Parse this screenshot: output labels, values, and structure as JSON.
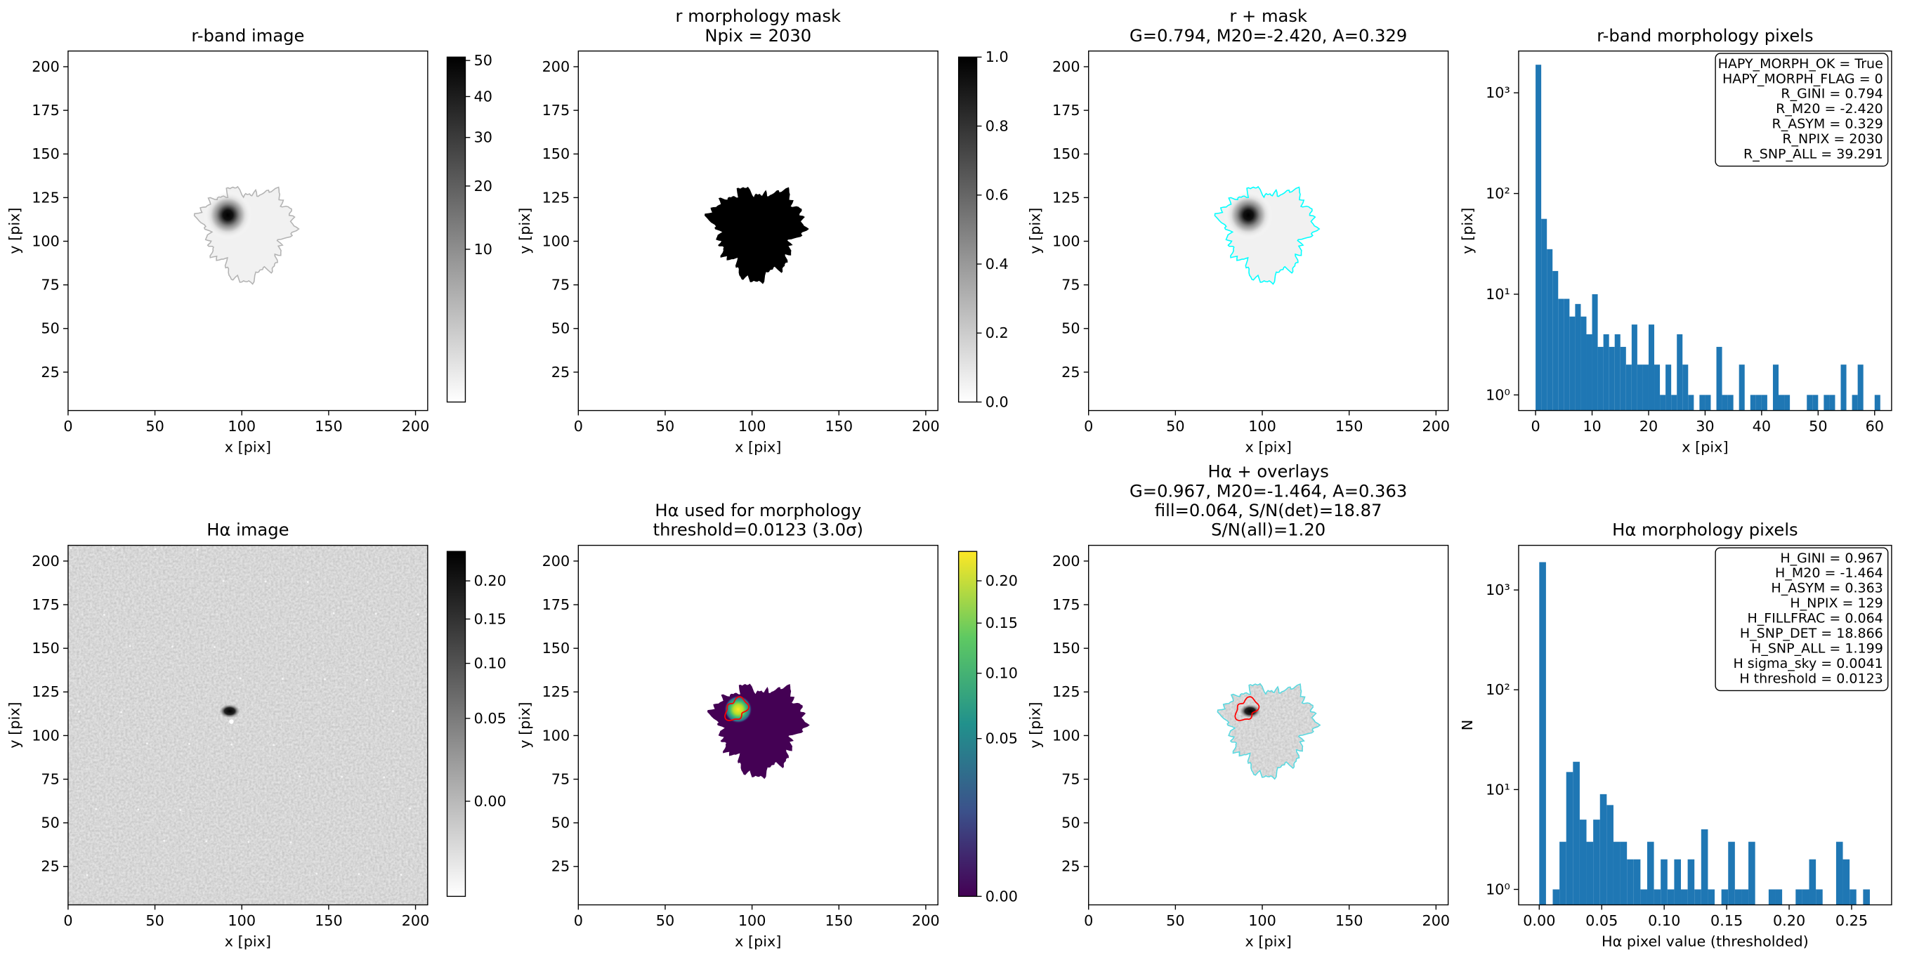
{
  "chart_data": [
    {
      "type": "image",
      "title": [
        "r-band image"
      ],
      "xlabel": "x [pix]",
      "ylabel": "y [pix]",
      "xlim": [
        0,
        207
      ],
      "ylim": [
        3,
        209
      ],
      "xticks": [
        0,
        50,
        100,
        150,
        200
      ],
      "yticks": [
        25,
        50,
        75,
        100,
        125,
        150,
        175,
        200
      ],
      "contour_color": "#b3b3b3",
      "colorbar": {
        "cmap": "gray_r",
        "stretch": "sqrt",
        "clim": [
          0,
          51
        ],
        "ticks": [
          10,
          20,
          30,
          40,
          50
        ]
      }
    },
    {
      "type": "image",
      "title": [
        "r morphology mask",
        "Npix = 2030"
      ],
      "xlabel": "x [pix]",
      "ylabel": "y [pix]",
      "xlim": [
        0,
        207
      ],
      "ylim": [
        3,
        209
      ],
      "xticks": [
        0,
        50,
        100,
        150,
        200
      ],
      "yticks": [
        25,
        50,
        75,
        100,
        125,
        150,
        175,
        200
      ],
      "colorbar": {
        "cmap": "gray_r",
        "stretch": "linear",
        "clim": [
          0,
          1
        ],
        "ticks": [
          {
            "value": 0,
            "label": "0.0"
          },
          0.2,
          0.4,
          0.6,
          0.8,
          {
            "value": 1,
            "label": "1.0"
          }
        ]
      }
    },
    {
      "type": "image",
      "title": [
        "r + mask",
        "G=0.794, M20=-2.420, A=0.329"
      ],
      "xlabel": "x [pix]",
      "ylabel": "y [pix]",
      "xlim": [
        0,
        207
      ],
      "ylim": [
        3,
        209
      ],
      "xticks": [
        0,
        50,
        100,
        150,
        200
      ],
      "yticks": [
        25,
        50,
        75,
        100,
        125,
        150,
        175,
        200
      ],
      "contour_color": "#00ffff"
    },
    {
      "type": "histogram",
      "title": [
        "r-band morphology pixels"
      ],
      "xlabel": "x [pix]",
      "ylabel": "y [pix]",
      "color": "#1f77b4",
      "log_y": true,
      "xlim": [
        -3,
        63
      ],
      "ylim": [
        0.7,
        2600
      ],
      "xticks": [
        0,
        10,
        20,
        30,
        40,
        50,
        60
      ],
      "yticks": [
        {
          "value": 1,
          "label": "10⁰"
        },
        {
          "value": 10,
          "label": "10¹"
        },
        {
          "value": 100,
          "label": "10²"
        },
        {
          "value": 1000,
          "label": "10³"
        }
      ],
      "bins": [
        0,
        1,
        2,
        3,
        4,
        5,
        6,
        7,
        8,
        9,
        10,
        11,
        12,
        13,
        14,
        15,
        16,
        17,
        18,
        19,
        20,
        21,
        22,
        23,
        24,
        25,
        26,
        27,
        28,
        29,
        30,
        31,
        32,
        33,
        34,
        35,
        36,
        37,
        38,
        39,
        40,
        41,
        42,
        43,
        44,
        45,
        46,
        47,
        48,
        49,
        50,
        51,
        52,
        53,
        54,
        55,
        56,
        57,
        58,
        59,
        60,
        61
      ],
      "values": [
        1900,
        56,
        28,
        17,
        9,
        9,
        6,
        8,
        6,
        4,
        10,
        3,
        4,
        3,
        4,
        3,
        2,
        5,
        2,
        2,
        5,
        2,
        1,
        2,
        1,
        4,
        2,
        1,
        0,
        1,
        1,
        0,
        3,
        1,
        1,
        0,
        2,
        0,
        1,
        1,
        1,
        0,
        2,
        1,
        1,
        0,
        0,
        0,
        1,
        1,
        0,
        1,
        1,
        0,
        2,
        0,
        1,
        2,
        0,
        0,
        1
      ],
      "textbox": [
        "HAPY_MORPH_OK = True",
        "HAPY_MORPH_FLAG = 0",
        "R_GINI = 0.794",
        "R_M20 = -2.420",
        "R_ASYM = 0.329",
        "R_NPIX = 2030",
        "R_SNP_ALL = 39.291"
      ]
    },
    {
      "type": "image",
      "title": [
        "Hα image"
      ],
      "xlabel": "x [pix]",
      "ylabel": "y [pix]",
      "xlim": [
        0,
        207
      ],
      "ylim": [
        3,
        209
      ],
      "xticks": [
        0,
        50,
        100,
        150,
        200
      ],
      "yticks": [
        25,
        50,
        75,
        100,
        125,
        150,
        175,
        200
      ],
      "colorbar": {
        "cmap": "gray_r",
        "stretch": "sqrt",
        "clim": [
          -0.02,
          0.243
        ],
        "ticks": [
          {
            "value": 0,
            "label": "0.00"
          },
          0.05,
          {
            "value": 0.1,
            "label": "0.10"
          },
          0.15,
          {
            "value": 0.2,
            "label": "0.20"
          }
        ]
      }
    },
    {
      "type": "image",
      "title": [
        "Hα used for morphology",
        "threshold=0.0123 (3.0σ)"
      ],
      "xlabel": "x [pix]",
      "ylabel": "y [pix]",
      "xlim": [
        0,
        207
      ],
      "ylim": [
        3,
        209
      ],
      "xticks": [
        0,
        50,
        100,
        150,
        200
      ],
      "yticks": [
        25,
        50,
        75,
        100,
        125,
        150,
        175,
        200
      ],
      "inner_contour_color": "#ff0000",
      "colorbar": {
        "cmap": "viridis",
        "stretch": "sqrt",
        "clim": [
          0,
          0.239
        ],
        "ticks": [
          {
            "value": 0,
            "label": "0.00"
          },
          0.05,
          {
            "value": 0.1,
            "label": "0.10"
          },
          0.15,
          {
            "value": 0.2,
            "label": "0.20"
          }
        ]
      }
    },
    {
      "type": "image",
      "title": [
        "Hα + overlays",
        "G=0.967, M20=-1.464, A=0.363",
        "fill=0.064, S/N(det)=18.87",
        "S/N(all)=1.20"
      ],
      "xlabel": "x [pix]",
      "ylabel": "y [pix]",
      "xlim": [
        0,
        207
      ],
      "ylim": [
        3,
        209
      ],
      "xticks": [
        0,
        50,
        100,
        150,
        200
      ],
      "yticks": [
        25,
        50,
        75,
        100,
        125,
        150,
        175,
        200
      ],
      "contour_color": "#5ad9e0",
      "inner_contour_color": "#ff0000"
    },
    {
      "type": "histogram",
      "title": [
        "Hα morphology pixels"
      ],
      "xlabel": "Hα pixel value (thresholded)",
      "ylabel": "N",
      "color": "#1f77b4",
      "log_y": true,
      "xlim": [
        -0.0165,
        0.282
      ],
      "ylim": [
        0.7,
        2800
      ],
      "xticks": [
        {
          "value": 0,
          "label": "0.00"
        },
        0.05,
        {
          "value": 0.1,
          "label": "0.10"
        },
        0.15,
        {
          "value": 0.2,
          "label": "0.20"
        },
        0.25
      ],
      "yticks": [
        {
          "value": 1,
          "label": "10⁰"
        },
        {
          "value": 10,
          "label": "10¹"
        },
        {
          "value": 100,
          "label": "10²"
        },
        {
          "value": 1000,
          "label": "10³"
        }
      ],
      "bins": [
        0,
        0.0054,
        0.0108,
        0.0162,
        0.0216,
        0.027,
        0.0324,
        0.0378,
        0.0432,
        0.0486,
        0.054,
        0.0594,
        0.0648,
        0.0702,
        0.0756,
        0.081,
        0.0864,
        0.0918,
        0.0972,
        0.1026,
        0.108,
        0.1134,
        0.1188,
        0.1242,
        0.1296,
        0.135,
        0.1404,
        0.1458,
        0.1512,
        0.1566,
        0.162,
        0.1674,
        0.1728,
        0.1782,
        0.1836,
        0.189,
        0.1944,
        0.1998,
        0.2052,
        0.2106,
        0.216,
        0.2214,
        0.2268,
        0.2322,
        0.2376,
        0.243,
        0.2484,
        0.2538,
        0.2592,
        0.2646
      ],
      "values": [
        1900,
        0,
        1,
        3,
        15,
        19,
        5,
        3,
        5,
        9,
        7,
        3,
        3,
        2,
        2,
        1,
        3,
        1,
        2,
        1,
        2,
        1,
        2,
        1,
        4,
        1,
        0,
        1,
        3,
        1,
        1,
        3,
        0,
        0,
        1,
        1,
        0,
        0,
        1,
        1,
        2,
        1,
        0,
        0,
        3,
        2,
        1,
        0,
        1
      ],
      "textbox": [
        "H_GINI = 0.967",
        "H_M20 = -1.464",
        "H_ASYM = 0.363",
        "H_NPIX = 129",
        "H_FILLFRAC = 0.064",
        "H_SNP_DET = 18.866",
        "H_SNP_ALL = 1.199",
        "H sigma_sky = 0.0041",
        "H threshold = 0.0123"
      ]
    }
  ]
}
